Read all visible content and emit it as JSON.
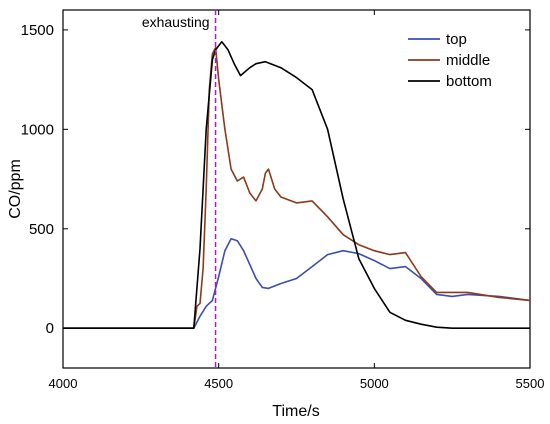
{
  "chart_data": {
    "type": "line",
    "xlabel": "Time/s",
    "ylabel": "CO/ppm",
    "xlim": [
      4000,
      5500
    ],
    "ylim": [
      -200,
      1600
    ],
    "xticks": [
      4000,
      4500,
      5000,
      5500
    ],
    "yticks": [
      0,
      500,
      1000,
      1500
    ],
    "legend_position": "top-right",
    "annotation": {
      "label": "exhausting",
      "x": 4490,
      "line_style": "dashed",
      "color": "#a020c0"
    },
    "series": [
      {
        "name": "top",
        "color": "#3a4fb0",
        "x": [
          4000,
          4420,
          4440,
          4460,
          4480,
          4500,
          4520,
          4540,
          4560,
          4580,
          4600,
          4620,
          4640,
          4660,
          4700,
          4750,
          4800,
          4850,
          4900,
          4950,
          5000,
          5050,
          5100,
          5150,
          5200,
          5250,
          5300,
          5400,
          5500
        ],
        "y": [
          0,
          0,
          60,
          110,
          140,
          260,
          390,
          450,
          440,
          390,
          320,
          250,
          205,
          200,
          225,
          250,
          310,
          370,
          390,
          375,
          340,
          300,
          310,
          250,
          170,
          160,
          170,
          160,
          140
        ]
      },
      {
        "name": "middle",
        "color": "#8b3a1a",
        "x": [
          4000,
          4420,
          4430,
          4440,
          4450,
          4460,
          4470,
          4480,
          4490,
          4500,
          4520,
          4540,
          4560,
          4580,
          4600,
          4620,
          4640,
          4650,
          4660,
          4680,
          4700,
          4750,
          4800,
          4850,
          4900,
          4950,
          5000,
          5050,
          5100,
          5150,
          5200,
          5300,
          5400,
          5500
        ],
        "y": [
          0,
          0,
          110,
          125,
          300,
          700,
          1200,
          1380,
          1410,
          1250,
          1000,
          800,
          740,
          760,
          680,
          640,
          700,
          780,
          800,
          700,
          660,
          630,
          640,
          560,
          470,
          420,
          390,
          370,
          380,
          260,
          180,
          180,
          155,
          140
        ]
      },
      {
        "name": "bottom",
        "color": "#000000",
        "x": [
          4000,
          4420,
          4440,
          4460,
          4480,
          4490,
          4500,
          4510,
          4530,
          4550,
          4570,
          4600,
          4620,
          4650,
          4700,
          4750,
          4800,
          4850,
          4900,
          4950,
          5000,
          5050,
          5100,
          5150,
          5200,
          5250,
          5280,
          5300,
          5400,
          5500
        ],
        "y": [
          0,
          0,
          400,
          1000,
          1350,
          1400,
          1420,
          1440,
          1400,
          1330,
          1270,
          1310,
          1330,
          1340,
          1310,
          1260,
          1200,
          1000,
          650,
          350,
          200,
          80,
          40,
          20,
          5,
          0,
          0,
          0,
          0,
          0
        ]
      }
    ]
  }
}
